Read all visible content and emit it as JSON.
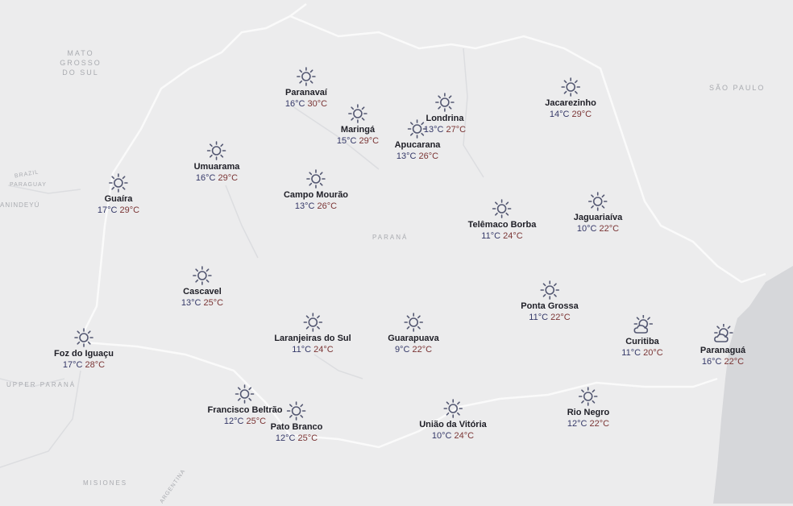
{
  "region_labels": {
    "mato_grosso": "MATO\nGROSSO\nDO SUL",
    "sao_paulo": "SÃO PAULO",
    "brazil": "BRAZIL",
    "paraguay": "PARAGUAY",
    "canindeyu": "ANINDEYÚ",
    "parana": "PARANÁ",
    "upper_parana": "UPPER PARANÁ",
    "misiones": "MISIONES",
    "argentina": "ARGENTINA"
  },
  "colors": {
    "min_temp": "#343868",
    "max_temp": "#7a3434",
    "icon": "#545872",
    "land": "#ececed",
    "ocean": "#d6d7da"
  },
  "cities": [
    {
      "name": "Paranavaí",
      "min": "16°C",
      "max": "30°C",
      "icon": "sun-icon"
    },
    {
      "name": "Maringá",
      "min": "15°C",
      "max": "29°C",
      "icon": "sun-icon"
    },
    {
      "name": "Apucarana",
      "min": "13°C",
      "max": "26°C",
      "icon": "sun-icon"
    },
    {
      "name": "Londrina",
      "min": "13°C",
      "max": "27°C",
      "icon": "sun-icon"
    },
    {
      "name": "Jacarezinho",
      "min": "14°C",
      "max": "29°C",
      "icon": "sun-icon"
    },
    {
      "name": "Umuarama",
      "min": "16°C",
      "max": "29°C",
      "icon": "sun-icon"
    },
    {
      "name": "Guaíra",
      "min": "17°C",
      "max": "29°C",
      "icon": "sun-icon"
    },
    {
      "name": "Campo Mourão",
      "min": "13°C",
      "max": "26°C",
      "icon": "sun-icon"
    },
    {
      "name": "Telêmaco Borba",
      "min": "11°C",
      "max": "24°C",
      "icon": "sun-icon"
    },
    {
      "name": "Jaguariaíva",
      "min": "10°C",
      "max": "22°C",
      "icon": "sun-icon"
    },
    {
      "name": "Cascavel",
      "min": "13°C",
      "max": "25°C",
      "icon": "sun-icon"
    },
    {
      "name": "Ponta Grossa",
      "min": "11°C",
      "max": "22°C",
      "icon": "sun-icon"
    },
    {
      "name": "Laranjeiras do Sul",
      "min": "11°C",
      "max": "24°C",
      "icon": "sun-icon"
    },
    {
      "name": "Guarapuava",
      "min": "9°C",
      "max": "22°C",
      "icon": "sun-icon"
    },
    {
      "name": "Curitiba",
      "min": "11°C",
      "max": "20°C",
      "icon": "partly-cloudy-icon"
    },
    {
      "name": "Paranaguá",
      "min": "16°C",
      "max": "22°C",
      "icon": "partly-cloudy-icon"
    },
    {
      "name": "Foz do Iguaçu",
      "min": "17°C",
      "max": "28°C",
      "icon": "sun-icon"
    },
    {
      "name": "Francisco Beltrão",
      "min": "12°C",
      "max": "25°C",
      "icon": "sun-icon"
    },
    {
      "name": "Pato Branco",
      "min": "12°C",
      "max": "25°C",
      "icon": "sun-icon"
    },
    {
      "name": "União da Vitória",
      "min": "10°C",
      "max": "24°C",
      "icon": "sun-icon"
    },
    {
      "name": "Rio Negro",
      "min": "12°C",
      "max": "22°C",
      "icon": "sun-icon"
    }
  ]
}
